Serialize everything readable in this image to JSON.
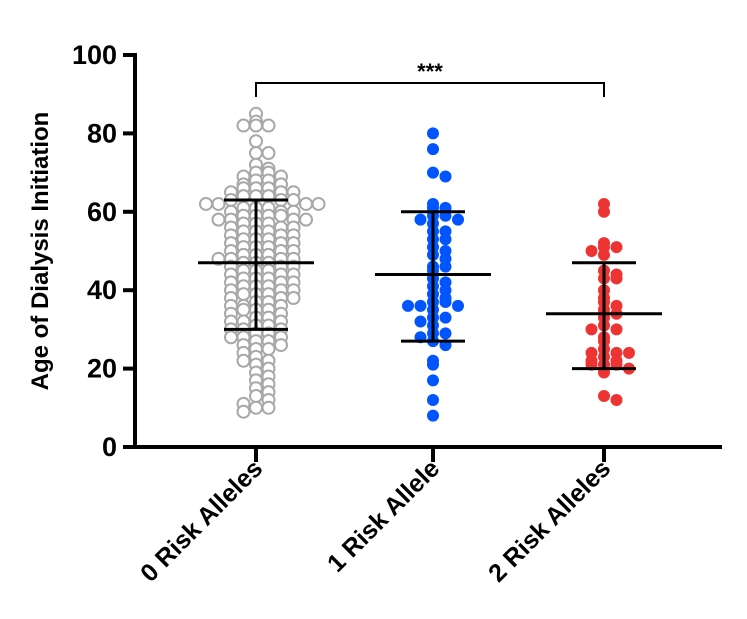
{
  "chart_data": {
    "type": "scatter",
    "ylabel": "Age of Dialysis Initiation",
    "ylim": [
      0,
      100
    ],
    "yticks": [
      0,
      20,
      40,
      60,
      80,
      100
    ],
    "categories": [
      "0 Risk Alleles",
      "1 Risk Allele",
      "2 Risk Alleles"
    ],
    "significance": {
      "label": "***",
      "from": 0,
      "to": 2
    },
    "groups": [
      {
        "category": "0 Risk Alleles",
        "color": "#a8a8a8",
        "marker": "open-circle",
        "mean": 47,
        "sd_low": 30,
        "sd_high": 63,
        "values": [
          85,
          83,
          82,
          82,
          82,
          78,
          75,
          75,
          72,
          71,
          70,
          70,
          69,
          69,
          68,
          68,
          67,
          67,
          66,
          66,
          66,
          65,
          65,
          65,
          64,
          64,
          64,
          63,
          63,
          63,
          62,
          62,
          62,
          62,
          61,
          61,
          61,
          60,
          60,
          60,
          59,
          59,
          59,
          59,
          58,
          58,
          58,
          58,
          57,
          57,
          57,
          56,
          56,
          56,
          55,
          55,
          55,
          54,
          54,
          54,
          53,
          53,
          53,
          52,
          52,
          52,
          51,
          51,
          51,
          50,
          50,
          50,
          49,
          49,
          49,
          48,
          48,
          48,
          48,
          47,
          47,
          47,
          46,
          46,
          46,
          45,
          45,
          45,
          44,
          44,
          44,
          43,
          43,
          43,
          42,
          42,
          42,
          41,
          41,
          41,
          40,
          40,
          40,
          39,
          39,
          39,
          38,
          38,
          38,
          37,
          37,
          36,
          36,
          36,
          35,
          35,
          35,
          34,
          34,
          33,
          33,
          32,
          32,
          32,
          31,
          31,
          30,
          30,
          30,
          29,
          29,
          28,
          28,
          28,
          27,
          27,
          26,
          26,
          25,
          25,
          24,
          23,
          22,
          22,
          21,
          20,
          19,
          18,
          17,
          16,
          15,
          14,
          13,
          12,
          11,
          10,
          10,
          9
        ]
      },
      {
        "category": "1 Risk Allele",
        "color": "#0055ff",
        "marker": "filled-circle",
        "mean": 44,
        "sd_low": 27,
        "sd_high": 60,
        "values": [
          80,
          76,
          70,
          69,
          62,
          61,
          61,
          59,
          59,
          58,
          58,
          57,
          55,
          55,
          53,
          53,
          51,
          50,
          49,
          48,
          46,
          46,
          45,
          43,
          42,
          41,
          40,
          39,
          38,
          37,
          37,
          36,
          36,
          36,
          35,
          33,
          33,
          32,
          31,
          29,
          29,
          28,
          27,
          26,
          22,
          21,
          17,
          12,
          8
        ]
      },
      {
        "category": "2 Risk Alleles",
        "color": "#ee3333",
        "marker": "filled-circle",
        "mean": 34,
        "sd_low": 20,
        "sd_high": 47,
        "values": [
          62,
          60,
          52,
          51,
          51,
          50,
          49,
          45,
          44,
          43,
          43,
          40,
          38,
          37,
          36,
          35,
          34,
          33,
          31,
          30,
          30,
          28,
          27,
          25,
          24,
          24,
          24,
          23,
          22,
          22,
          21,
          21,
          21,
          20,
          19,
          13,
          12
        ]
      }
    ]
  }
}
